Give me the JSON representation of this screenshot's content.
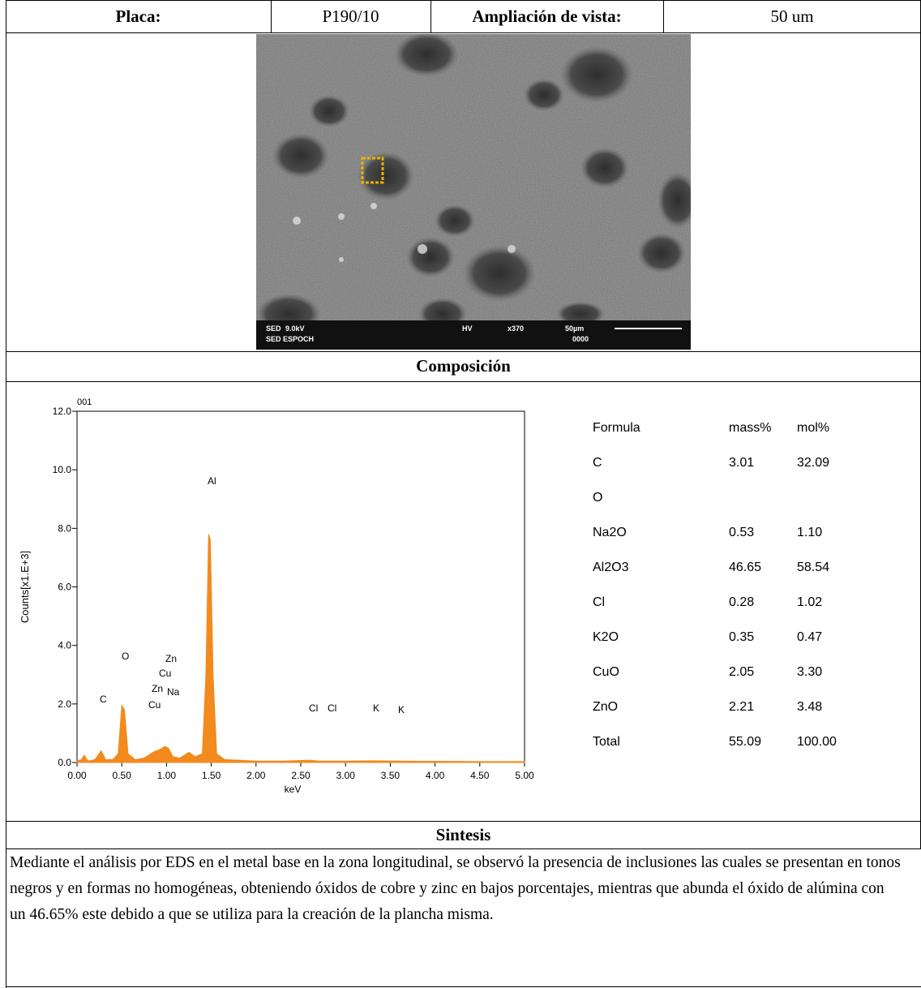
{
  "header": {
    "cells": [
      "Placa:",
      "P190/10",
      "Ampliación de vista:",
      "50 um"
    ]
  },
  "image": {
    "caption": [
      "SED",
      "9.0kV",
      "SED ESPOCH",
      "HV",
      "x370",
      "50µm",
      "0000"
    ]
  },
  "composition": {
    "title": "Composición",
    "spectrum": {
      "type": "area",
      "title": "001",
      "y_label": "Counts[x1.E+3]",
      "x_label": "keV",
      "color": "#f28a1e",
      "x": [
        0.0,
        0.05,
        0.08,
        0.12,
        0.2,
        0.27,
        0.32,
        0.4,
        0.46,
        0.5,
        0.53,
        0.57,
        0.65,
        0.75,
        0.85,
        0.93,
        0.98,
        1.02,
        1.07,
        1.15,
        1.25,
        1.32,
        1.4,
        1.44,
        1.47,
        1.49,
        1.52,
        1.56,
        1.65,
        1.8,
        2.0,
        2.3,
        2.6,
        2.7,
        3.0,
        3.3,
        3.6,
        4.0,
        4.5,
        5.0
      ],
      "values": [
        0.05,
        0.1,
        0.25,
        0.05,
        0.1,
        0.4,
        0.1,
        0.1,
        0.3,
        1.95,
        1.8,
        0.3,
        0.1,
        0.15,
        0.35,
        0.45,
        0.55,
        0.5,
        0.2,
        0.15,
        0.35,
        0.2,
        0.3,
        3.0,
        7.8,
        7.6,
        3.0,
        0.3,
        0.1,
        0.08,
        0.05,
        0.05,
        0.08,
        0.05,
        0.05,
        0.06,
        0.05,
        0.04,
        0.03,
        0.03
      ],
      "xlim": [
        0,
        5
      ],
      "ylim": [
        0,
        12
      ],
      "xticks": [
        {
          "value": 0,
          "label": "0.00"
        },
        {
          "value": 0.5,
          "label": "0.50"
        },
        {
          "value": 1,
          "label": "1.00"
        },
        {
          "value": 1.5,
          "label": "1.50"
        },
        {
          "value": 2,
          "label": "2.00"
        },
        {
          "value": 2.5,
          "label": "2.50"
        },
        {
          "value": 3,
          "label": "3.00"
        },
        {
          "value": 3.5,
          "label": "3.50"
        },
        {
          "value": 4,
          "label": "4.00"
        },
        {
          "value": 4.5,
          "label": "4.50"
        },
        {
          "value": 5,
          "label": "5.00"
        }
      ],
      "yticks": [
        {
          "value": 0,
          "label": "0.0"
        },
        {
          "value": 2,
          "label": "2.0"
        },
        {
          "value": 4,
          "label": "4.0"
        },
        {
          "value": 6,
          "label": "6.0"
        },
        {
          "value": 8,
          "label": "8.0"
        },
        {
          "value": 10,
          "label": "10.0"
        },
        {
          "value": 12,
          "label": "12.0"
        }
      ],
      "peak_labels": [
        "C",
        "O",
        "Zn",
        "Cu",
        "Zn",
        "Na",
        "Cu",
        "Al",
        "Cl",
        "Cl",
        "K",
        "K"
      ]
    },
    "table": {
      "columns": [
        "Formula",
        "mass%",
        "mol%"
      ],
      "rows": [
        [
          "C",
          "3.01",
          "32.09"
        ],
        [
          "O"
        ],
        [
          "Na2O",
          "0.53",
          "1.10"
        ],
        [
          "Al2O3",
          "46.65",
          "58.54"
        ],
        [
          "Cl",
          "0.28",
          "1.02"
        ],
        [
          "K2O",
          "0.35",
          "0.47"
        ],
        [
          "CuO",
          "2.05",
          "3.30"
        ],
        [
          "ZnO",
          "2.21",
          "3.48"
        ],
        [
          "Total",
          "55.09",
          "100.00"
        ]
      ]
    }
  },
  "synthesis": {
    "title": "Sintesis",
    "text": "Mediante el análisis por EDS en el metal base en la zona longitudinal, se observó la presencia de inclusiones las cuales se presentan en tonos negros y en formas no homogéneas, obteniendo óxidos de cobre y zinc en bajos porcentajes, mientras que abunda el óxido de alúmina con un 46.65% este debido a que se utiliza para la creación de la plancha misma."
  }
}
